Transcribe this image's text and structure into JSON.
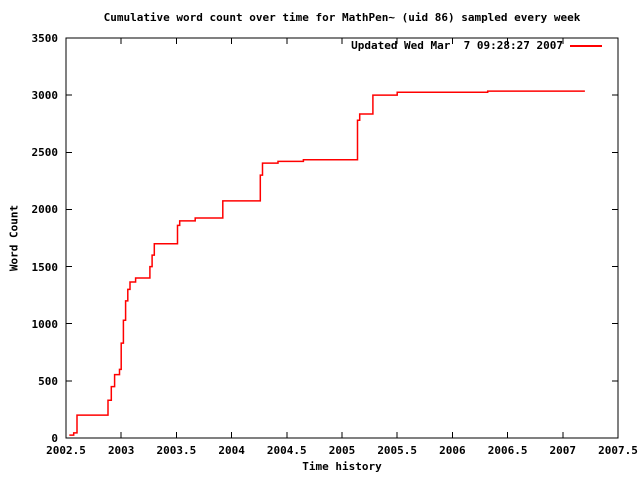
{
  "legend": {
    "label": "Updated Wed Mar  7 09:28:27 2007",
    "color": "#ff0000"
  },
  "chart_data": {
    "type": "line",
    "title": "Cumulative word count over time for MathPen~ (uid 86) sampled every week",
    "xlabel": "Time history",
    "ylabel": "Word Count",
    "xlim": [
      2002.5,
      2007.5
    ],
    "ylim": [
      0,
      3500
    ],
    "xticks": [
      "2002.5",
      "2003",
      "2003.5",
      "2004",
      "2004.5",
      "2005",
      "2005.5",
      "2006",
      "2006.5",
      "2007",
      "2007.5"
    ],
    "yticks": [
      "0",
      "500",
      "1000",
      "1500",
      "2000",
      "2500",
      "3000",
      "3500"
    ],
    "grid": false,
    "legend_position": "top-right",
    "line_color": "#ff0000",
    "border_color": "#000000",
    "step": true,
    "series": [
      {
        "name": "Updated Wed Mar  7 09:28:27 2007",
        "points": [
          [
            2002.53,
            25
          ],
          [
            2002.57,
            45
          ],
          [
            2002.6,
            200
          ],
          [
            2002.88,
            330
          ],
          [
            2002.91,
            450
          ],
          [
            2002.94,
            555
          ],
          [
            2002.985,
            600
          ],
          [
            2003.0,
            830
          ],
          [
            2003.02,
            1030
          ],
          [
            2003.04,
            1200
          ],
          [
            2003.06,
            1300
          ],
          [
            2003.08,
            1365
          ],
          [
            2003.13,
            1400
          ],
          [
            2003.26,
            1500
          ],
          [
            2003.28,
            1600
          ],
          [
            2003.3,
            1700
          ],
          [
            2003.51,
            1860
          ],
          [
            2003.53,
            1900
          ],
          [
            2003.67,
            1925
          ],
          [
            2003.92,
            2075
          ],
          [
            2004.26,
            2300
          ],
          [
            2004.28,
            2405
          ],
          [
            2004.42,
            2420
          ],
          [
            2004.65,
            2435
          ],
          [
            2005.14,
            2780
          ],
          [
            2005.16,
            2835
          ],
          [
            2005.28,
            3000
          ],
          [
            2005.5,
            3025
          ],
          [
            2006.32,
            3035
          ],
          [
            2007.2,
            3035
          ]
        ]
      }
    ]
  }
}
